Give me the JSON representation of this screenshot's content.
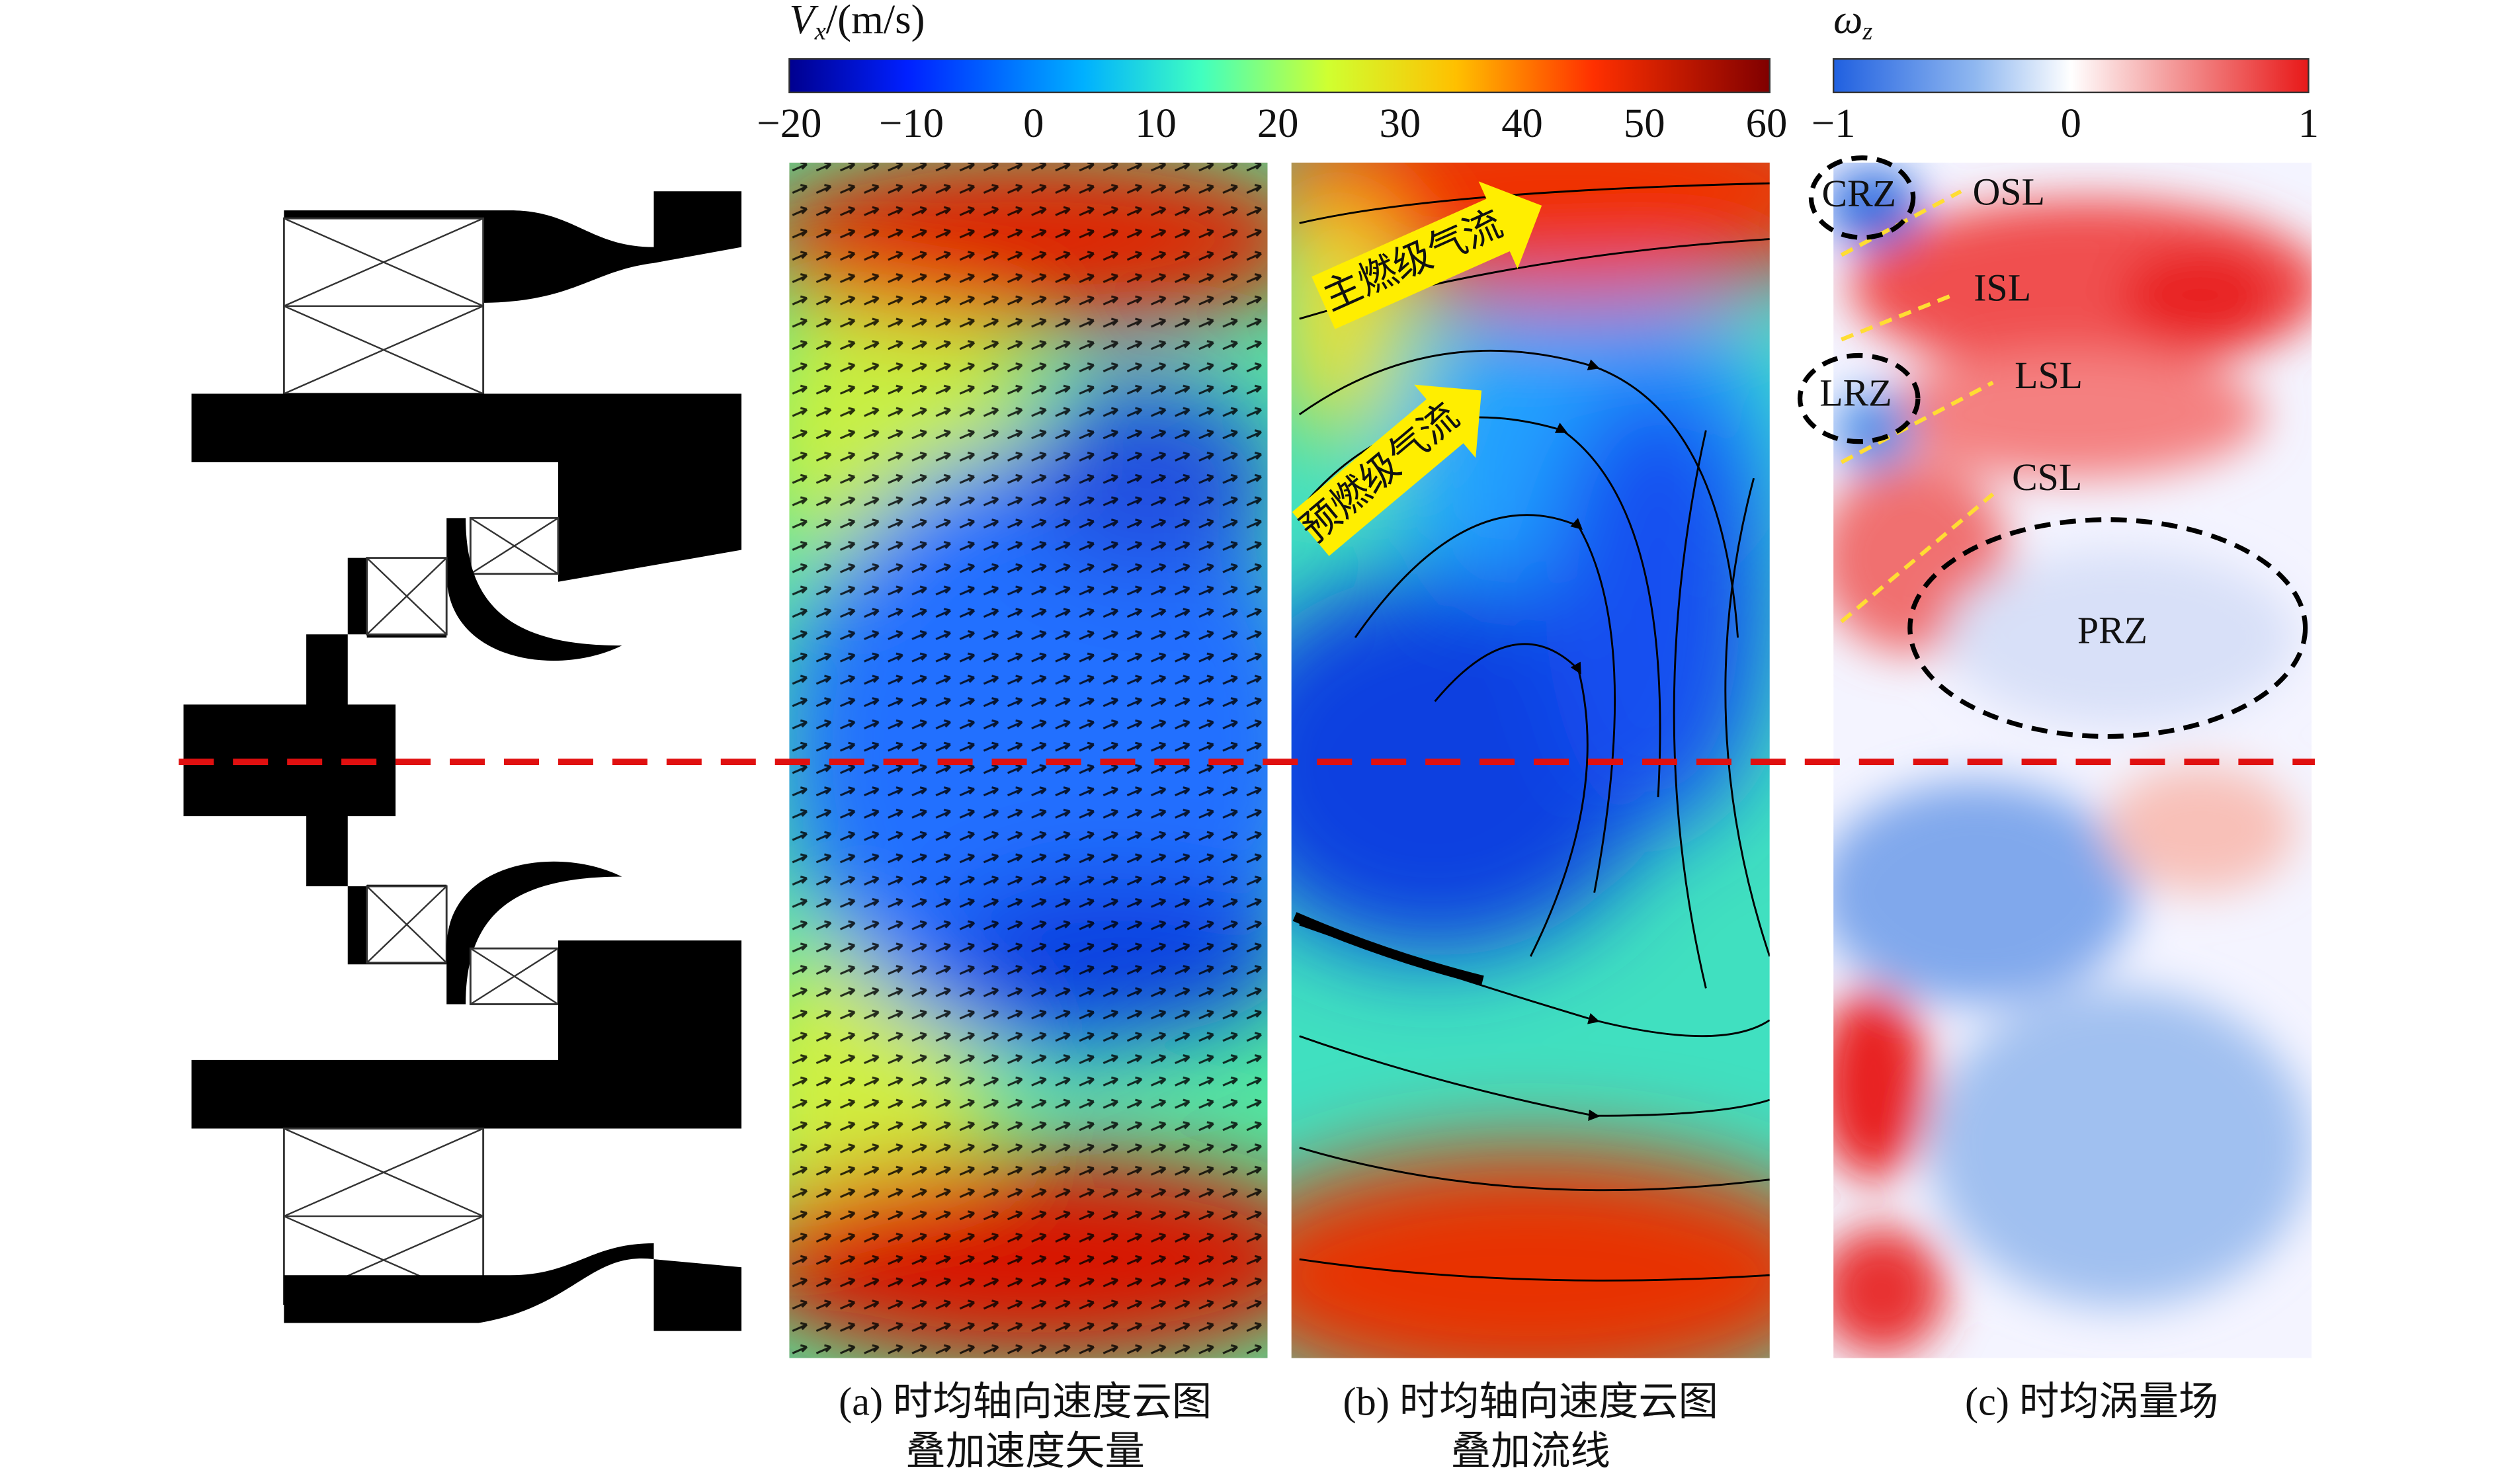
{
  "colorbars": {
    "velocity": {
      "title_symbol": "V",
      "title_subscript": "x",
      "title_unit": "/(m/s)",
      "ticks": [
        "−20",
        "−10",
        "0",
        "10",
        "20",
        "30",
        "40",
        "50",
        "60"
      ]
    },
    "vorticity": {
      "title_symbol": "ω",
      "title_subscript": "z",
      "ticks": [
        "−1",
        "0",
        "1"
      ]
    }
  },
  "annotations": {
    "main_flow": "主燃级气流",
    "pilot_flow": "预燃级气流",
    "zones": [
      "CRZ",
      "OSL",
      "ISL",
      "LRZ",
      "LSL",
      "CSL",
      "PRZ"
    ]
  },
  "captions": {
    "a": [
      "(a) 时均轴向速度云图",
      "叠加速度矢量"
    ],
    "b": [
      "(b) 时均轴向速度云图",
      "叠加流线"
    ],
    "c": [
      "(c) 时均涡量场"
    ]
  }
}
